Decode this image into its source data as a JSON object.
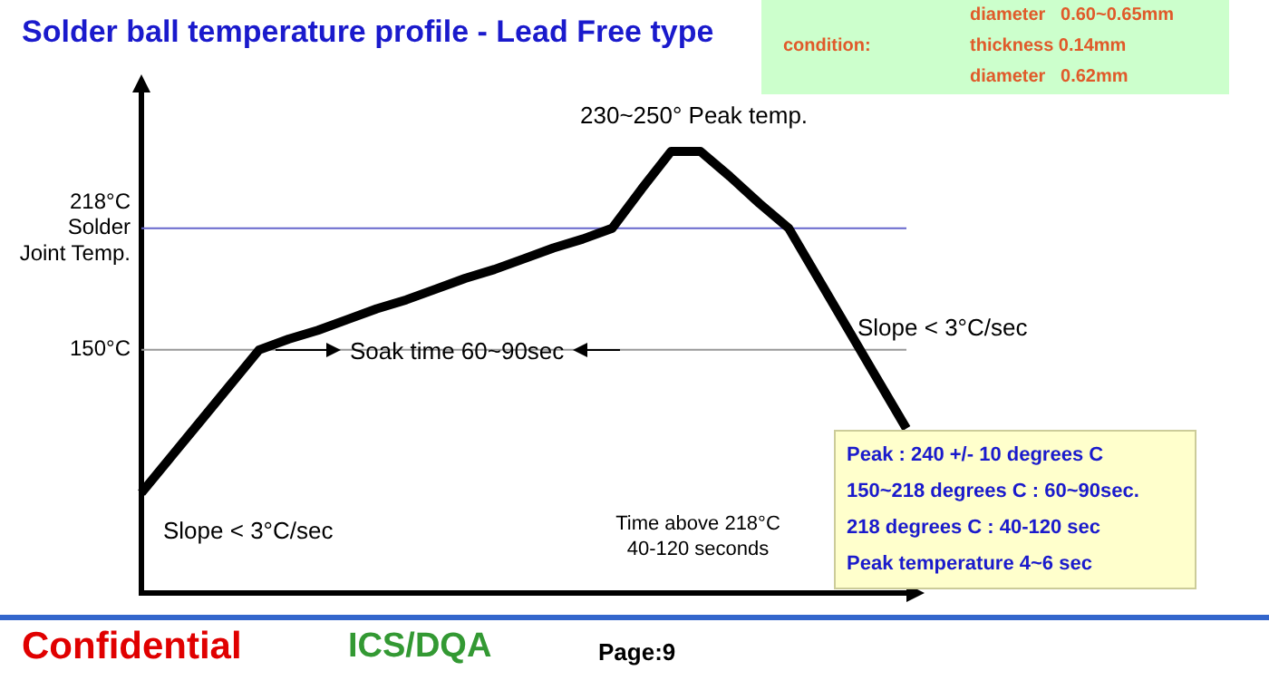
{
  "chart_data": {
    "type": "line",
    "title": "Solder ball temperature profile - Lead Free type",
    "categories": [
      null,
      null,
      null,
      null,
      null,
      null,
      null,
      null,
      null,
      null,
      null,
      null,
      null,
      null,
      null,
      null,
      null,
      null,
      null,
      null,
      null,
      null,
      null,
      null,
      null,
      null,
      null
    ],
    "series": [
      {
        "color": "#000000",
        "values": [
          70,
          90,
          110,
          130,
          150,
          156,
          161,
          167,
          173,
          178,
          184,
          190,
          195,
          201,
          207,
          212,
          218,
          240,
          261,
          261,
          247,
          232,
          218,
          190,
          162,
          134,
          106
        ]
      }
    ],
    "ylim": [
      14,
      295
    ],
    "yticks": [
      {
        "value": 150,
        "label": "150°C"
      },
      {
        "value": 218,
        "label": "218°C\nSolder\nJoint Temp."
      }
    ],
    "tick_labels": "y",
    "grid": false,
    "legend": false,
    "marker": "none",
    "line_style": "solid",
    "ref_lines": [
      {
        "axis": "y",
        "value": 218,
        "color": "#6666cc"
      },
      {
        "axis": "y",
        "value": 150,
        "color": "#999999"
      }
    ],
    "annotations": [
      "230~250° Peak temp.",
      "Soak time 60~90sec",
      "Slope < 3°C/sec",
      "Slope < 3°C/sec",
      "Time above 218°C\n40-120 seconds",
      "Peak : 240 +/- 10 degrees C",
      "150~218 degrees C : 60~90sec.",
      "218 degrees C : 40-120 sec",
      "Peak temperature 4~6 sec",
      "condition:",
      "diameter   0.60~0.65mm",
      "thickness 0.14mm",
      "diameter   0.62mm",
      "Confidential",
      "ICS/DQA",
      "Page:9"
    ]
  }
}
